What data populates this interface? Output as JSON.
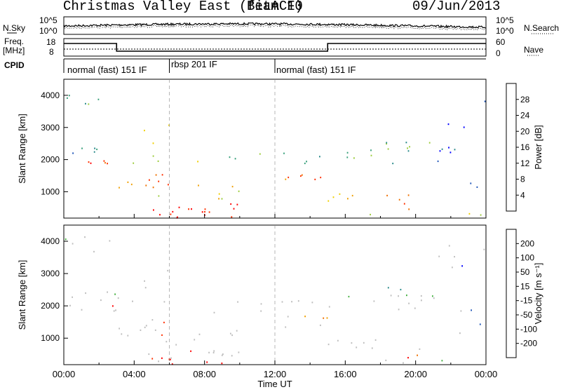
{
  "header": {
    "station": "Christmas Valley East (fitACF)",
    "beam": "Beam 10",
    "date": "09/Jun/2013"
  },
  "top_panels": {
    "left_labels": [
      "N.Sky",
      "Freq.",
      "[MHz]",
      "CPID"
    ],
    "right_labels": [
      "N.Search",
      "Nave"
    ],
    "noise_left_ticks": [
      "10^5",
      "10^0"
    ],
    "noise_right_ticks": [
      "10^5",
      "10^0"
    ],
    "freq_ticks": [
      "18",
      "8"
    ],
    "nave_ticks": [
      "60",
      "0"
    ]
  },
  "cpid_segments": [
    {
      "label": "normal (fast) 151 IF",
      "start_hour": 0
    },
    {
      "label": "rbsp 201 IF",
      "start_hour": 6
    },
    {
      "label": "normal (fast) 151 IF",
      "start_hour": 12
    }
  ],
  "colors": {
    "power_scale": [
      "#0000ff",
      "#1f55b8",
      "#2a8a8a",
      "#37a07a",
      "#9ccc3c",
      "#f0d000",
      "#f0a000",
      "#f07000",
      "#ff3000",
      "#ff0000"
    ],
    "velocity_scale": [
      "#0000ff",
      "#1f55b8",
      "#2a8a8a",
      "#44b040",
      "#bebebe",
      "#bebebe",
      "#f0a000",
      "#f07000",
      "#ff3000",
      "#ff0000"
    ]
  },
  "chart_data": [
    {
      "type": "heatmap",
      "ylabel": "Slant Range [km]",
      "xlabel": "Time UT",
      "xlim": [
        0,
        24
      ],
      "ylim": [
        180,
        4500
      ],
      "x_ticks": [
        "00:00",
        "04:00",
        "08:00",
        "12:00",
        "16:00",
        "20:00",
        "00:00"
      ],
      "y_ticks": [
        1000,
        2000,
        3000,
        4000
      ],
      "colorbar": {
        "label": "Power [dB]",
        "ticks": [
          4,
          8,
          12,
          16,
          20,
          24,
          28
        ],
        "range": [
          0,
          30
        ]
      }
    },
    {
      "type": "heatmap",
      "ylabel": "Slant Range [km]",
      "xlabel": "Time UT",
      "xlim": [
        0,
        24
      ],
      "ylim": [
        180,
        4500
      ],
      "x_ticks": [
        "00:00",
        "04:00",
        "08:00",
        "12:00",
        "16:00",
        "20:00",
        "00:00"
      ],
      "y_ticks": [
        1000,
        2000,
        3000,
        4000
      ],
      "colorbar": {
        "label": "Velocity [m s⁻¹]",
        "ticks": [
          "200",
          "100",
          "50",
          "15",
          "-15",
          "-50",
          "-100",
          "-200"
        ],
        "range": [
          -250,
          250
        ]
      }
    }
  ]
}
